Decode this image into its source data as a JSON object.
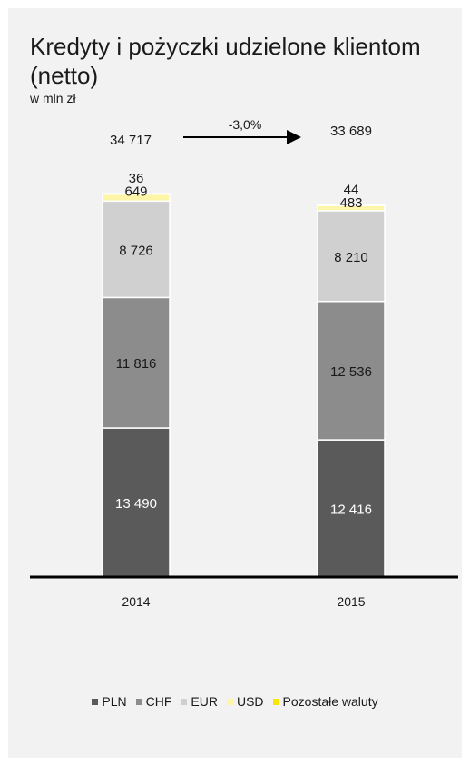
{
  "header": {
    "title": "Kredyty i pożyczki udzielone klientom (netto)",
    "unit": "w mln zł"
  },
  "colors": {
    "PLN": "#5a5a5a",
    "CHF": "#8c8c8c",
    "EUR": "#d0d0d0",
    "USD": "#fdf6a8",
    "Pozostałe waluty": "#fbe400"
  },
  "chart_data": {
    "type": "bar",
    "stacked": true,
    "categories": [
      "2014",
      "2015"
    ],
    "series": [
      {
        "name": "PLN",
        "values": [
          13490,
          12416
        ]
      },
      {
        "name": "CHF",
        "values": [
          11816,
          12536
        ]
      },
      {
        "name": "EUR",
        "values": [
          8726,
          8210
        ]
      },
      {
        "name": "USD",
        "values": [
          649,
          483
        ]
      },
      {
        "name": "Pozostałe waluty",
        "values": [
          36,
          44
        ]
      }
    ],
    "value_labels": [
      [
        "13 490",
        "11 816",
        "8 726",
        "649",
        "36"
      ],
      [
        "12 416",
        "12 536",
        "8 210",
        "483",
        "44"
      ]
    ],
    "totals": [
      34717,
      33689
    ],
    "total_labels": [
      "34 717",
      "33 689"
    ],
    "change_label": "-3,0%",
    "ylim": [
      0,
      34717
    ],
    "legend_position": "bottom",
    "grid": false
  }
}
